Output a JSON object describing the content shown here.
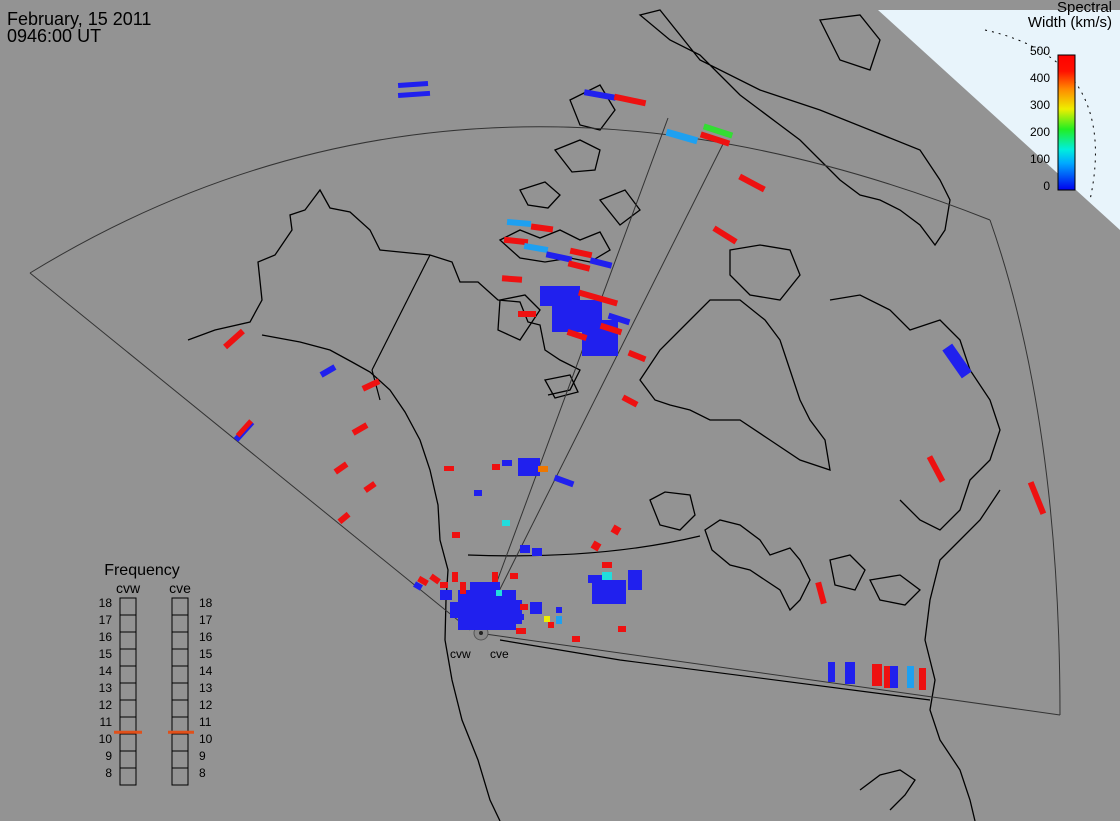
{
  "header": {
    "date": "February, 15 2011",
    "time": "0946:00 UT"
  },
  "colorbar": {
    "title_line1": "Spectral",
    "title_line2": "Width (km/s)",
    "ticks": [
      "500",
      "400",
      "300",
      "200",
      "100",
      "0"
    ]
  },
  "frequency_panel": {
    "title": "Frequency",
    "radar_left": "cvw",
    "radar_right": "cve",
    "ticks": [
      "18",
      "17",
      "16",
      "15",
      "14",
      "13",
      "12",
      "11",
      "10",
      "9",
      "8"
    ],
    "left_value_mhz": 10.6,
    "right_value_mhz": 10.6,
    "indicator_color": "#e0501a"
  },
  "radar_labels": {
    "west": "cvw",
    "east": "cve"
  },
  "colors": {
    "background": "#939393",
    "daylight": "#e8f4fb",
    "blue": "#2020ee",
    "light_blue": "#1ea0f0",
    "cyan": "#22dddd",
    "green": "#33dd33",
    "yellow": "#eeee00",
    "orange": "#ee7700",
    "red": "#ee1111"
  }
}
